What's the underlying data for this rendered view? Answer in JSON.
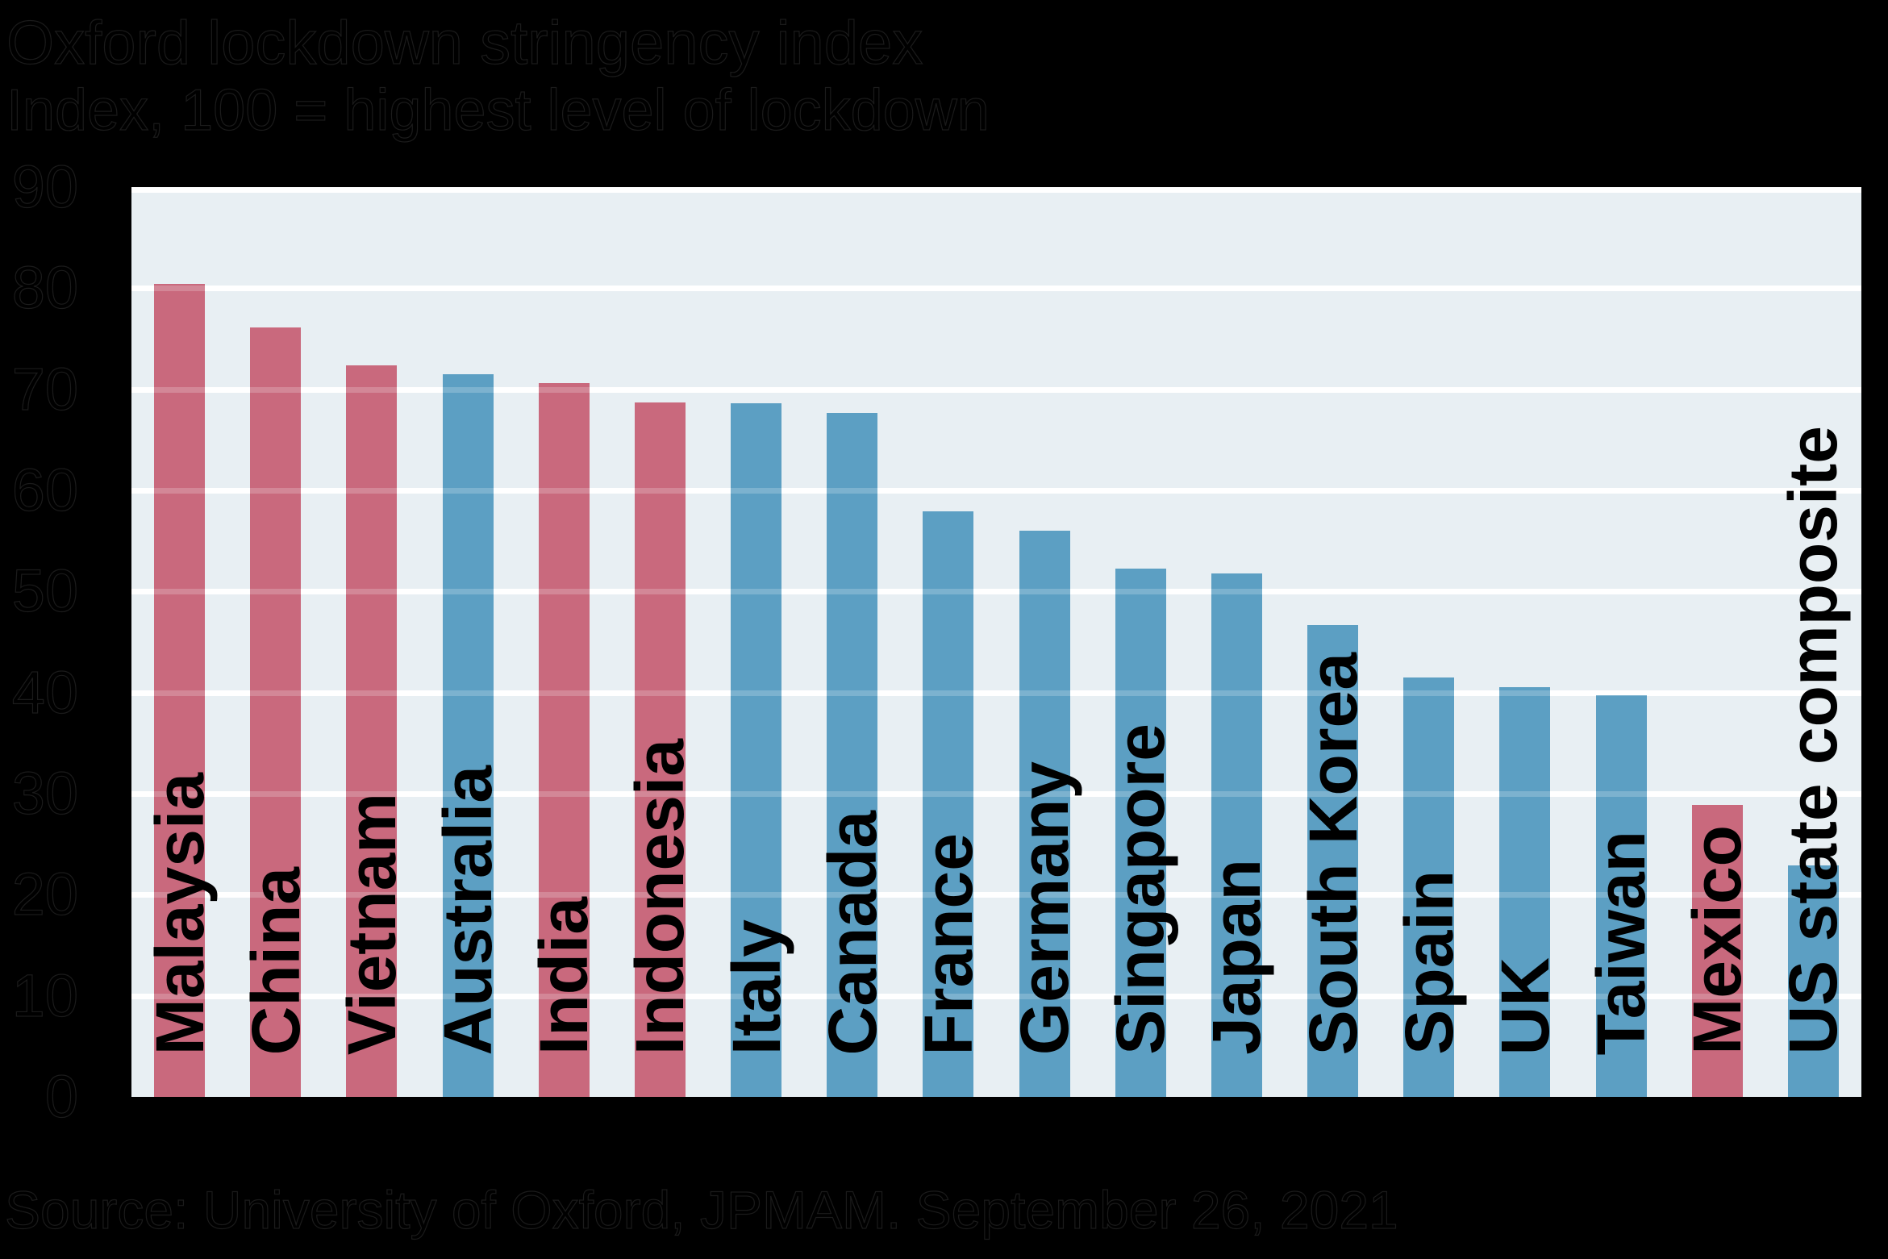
{
  "chart_data": {
    "type": "bar",
    "title": "Oxford lockdown stringency index",
    "subtitle": "Index, 100 = highest level of lockdown",
    "source_note": "Source: University of Oxford, JPMAM. September 26, 2021",
    "categories": [
      "Malaysia",
      "China",
      "Vietnam",
      "Australia",
      "India",
      "Indonesia",
      "Italy",
      "Canada",
      "France",
      "Germany",
      "Singapore",
      "Japan",
      "South Korea",
      "Spain",
      "UK",
      "Taiwan",
      "Mexico",
      "US state composite"
    ],
    "values": [
      80.4,
      76.1,
      72.4,
      71.5,
      70.6,
      68.7,
      68.6,
      67.7,
      57.9,
      56.0,
      52.3,
      51.8,
      46.7,
      41.5,
      40.5,
      39.7,
      28.9,
      22.9
    ],
    "bar_colors": [
      "red",
      "red",
      "red",
      "blue",
      "red",
      "red",
      "blue",
      "blue",
      "blue",
      "blue",
      "blue",
      "blue",
      "blue",
      "blue",
      "blue",
      "blue",
      "red",
      "blue"
    ],
    "ylim": [
      0,
      90
    ],
    "yticks": [
      0,
      10,
      20,
      30,
      40,
      50,
      60,
      70,
      80,
      90
    ],
    "xlabel": "",
    "ylabel": "",
    "grid": "horizontal",
    "legend_position": "none",
    "bar_label_placement": "vertical, bottom-anchored inside bars"
  },
  "colors": {
    "red_bar": "#c9697d",
    "blue_bar": "#5c9fc3",
    "plot_background": "#e8eff3",
    "gridline": "#ffffff",
    "page_background": "#000000",
    "text": "#000000"
  }
}
